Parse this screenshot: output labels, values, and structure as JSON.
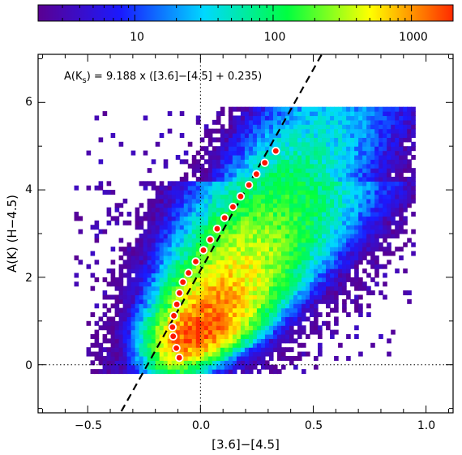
{
  "chart_data": {
    "type": "heatmap",
    "title": "",
    "xlabel": "[3.6]−[4.5]",
    "ylabel": "A(K)  (H−4.5)",
    "xlim": [
      -0.72,
      1.12
    ],
    "ylim": [
      -1.1,
      7.1
    ],
    "x_ticks": [
      -0.5,
      0.0,
      0.5,
      1.0
    ],
    "x_tick_labels": [
      "−0.5",
      "0.0",
      "0.5",
      "1.0"
    ],
    "y_ticks": [
      0,
      2,
      4,
      6
    ],
    "y_tick_labels": [
      "0",
      "2",
      "4",
      "6"
    ],
    "colorbar": {
      "scale": "log",
      "range": [
        2,
        2000
      ],
      "ticks": [
        10,
        100,
        1000
      ],
      "tick_labels": [
        "10",
        "100",
        "1000"
      ],
      "colormap": [
        "#5a0091",
        "#1a1aff",
        "#00d8ff",
        "#00ff40",
        "#ffff00",
        "#ff2a00"
      ]
    },
    "annotation": {
      "prefix": "A(K",
      "subscript": "s",
      "suffix": ")  =  9.188  x  ([3.6]−[4.5]  +  0.235)"
    },
    "fit_line": {
      "slope": 9.188,
      "offset": 0.235
    },
    "reference_lines": {
      "x": 0,
      "y": 0
    },
    "binned_median_points": {
      "x": [
        -0.094,
        -0.107,
        -0.121,
        -0.124,
        -0.118,
        -0.105,
        -0.093,
        -0.078,
        -0.053,
        -0.021,
        0.013,
        0.043,
        0.074,
        0.107,
        0.144,
        0.178,
        0.215,
        0.248,
        0.285,
        0.334
      ],
      "y": [
        0.16,
        0.38,
        0.65,
        0.86,
        1.12,
        1.38,
        1.64,
        1.89,
        2.1,
        2.36,
        2.62,
        2.86,
        3.11,
        3.36,
        3.61,
        3.85,
        4.11,
        4.36,
        4.62,
        4.89
      ]
    }
  }
}
